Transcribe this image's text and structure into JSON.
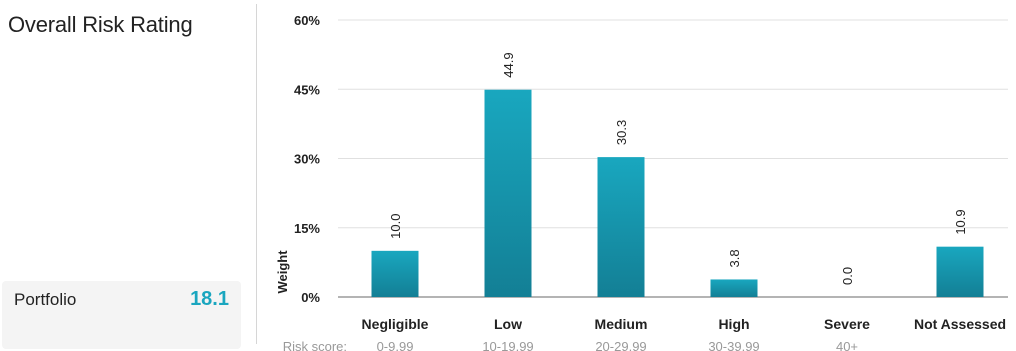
{
  "panel": {
    "title": "Overall Risk Rating",
    "portfolio_label": "Portfolio",
    "portfolio_value": "18.1",
    "value_color": "#1aa6bf"
  },
  "chart_data": {
    "type": "bar",
    "ylabel": "Weight",
    "ylim": [
      0,
      60
    ],
    "yticks": [
      0,
      15,
      30,
      45,
      60
    ],
    "ytick_labels": [
      "0%",
      "15%",
      "30%",
      "45%",
      "60%"
    ],
    "grid": true,
    "categories": [
      "Negligible",
      "Low",
      "Medium",
      "High",
      "Severe",
      "Not Assessed"
    ],
    "values": [
      10.0,
      44.9,
      30.3,
      3.8,
      0.0,
      10.9
    ],
    "value_labels": [
      "10.0",
      "44.9",
      "30.3",
      "3.8",
      "0.0",
      "10.9"
    ],
    "risk_score_label": "Risk score:",
    "score_ranges": [
      "0-9.99",
      "10-19.99",
      "20-29.99",
      "30-39.99",
      "40+",
      ""
    ],
    "bar_color_top": "#19a7bf",
    "bar_color_bottom": "#137f95"
  }
}
